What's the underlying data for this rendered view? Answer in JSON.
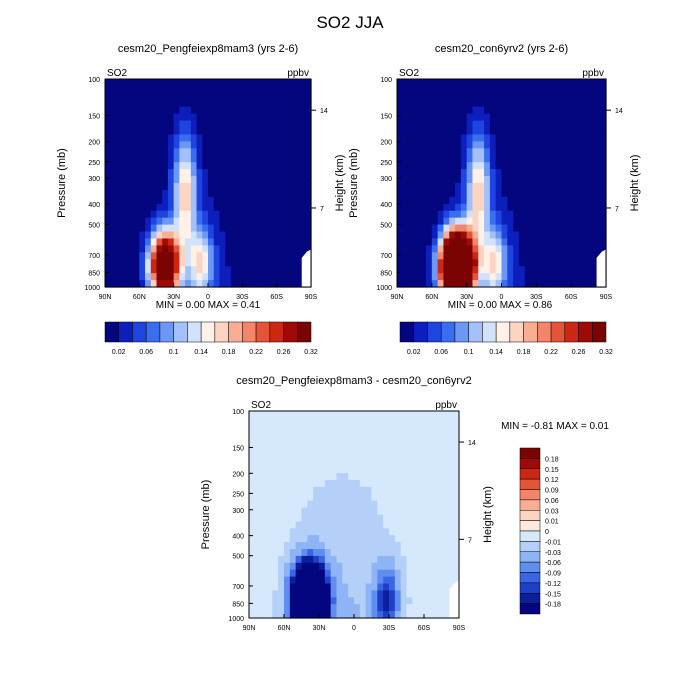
{
  "page_title": "SO2 JJA",
  "chart_data": [
    {
      "type": "heatmap",
      "title": "cesm20_Pengfeiexp8mam3 (yrs 2-6)",
      "left_label": "SO2",
      "right_label": "ppbv",
      "xlabel": "",
      "ylabel": "Pressure (mb)",
      "ylabel_right": "Height (km)",
      "x_ticks": [
        "90N",
        "60N",
        "30N",
        "0",
        "30S",
        "60S",
        "90S"
      ],
      "y_ticks": [
        "100",
        "150",
        "200",
        "250",
        "300",
        "400",
        "500",
        "700",
        "850",
        "1000"
      ],
      "height_ticks": [
        "14",
        "7"
      ],
      "min_max_text": {
        "min_label": "MIN =",
        "min": "0.00",
        "max_label": "MAX =",
        "max": "0.41"
      },
      "colorbar_labels": [
        "0.02",
        "0.06",
        "0.1",
        "0.14",
        "0.18",
        "0.22",
        "0.26",
        "0.32"
      ],
      "colorbar_colors": [
        "#04067f",
        "#0c1fbd",
        "#1f45e0",
        "#3a6ef0",
        "#6b98f5",
        "#a3c0fa",
        "#d2e2fb",
        "#fff0e8",
        "#fcd4c2",
        "#f9ae94",
        "#f2856a",
        "#e45439",
        "#cb2712",
        "#a00a06",
        "#7a0404"
      ],
      "background_value": 0.005,
      "hotspots": [
        {
          "lat": 20,
          "p": 350,
          "value": 0.12,
          "peak": 0.16
        },
        {
          "lat": 38,
          "p": 780,
          "value": 0.3,
          "peak": 0.41
        },
        {
          "lat": 6,
          "p": 760,
          "value": 0.1,
          "peak": 0.14
        }
      ]
    },
    {
      "type": "heatmap",
      "title": "cesm20_con6yrv2 (yrs 2-6)",
      "left_label": "SO2",
      "right_label": "ppbv",
      "xlabel": "",
      "ylabel": "Pressure (mb)",
      "ylabel_right": "Height (km)",
      "x_ticks": [
        "90N",
        "60N",
        "30N",
        "0",
        "30S",
        "60S",
        "90S"
      ],
      "y_ticks": [
        "100",
        "150",
        "200",
        "250",
        "300",
        "400",
        "500",
        "700",
        "850",
        "1000"
      ],
      "height_ticks": [
        "14",
        "7"
      ],
      "min_max_text": {
        "min_label": "MIN =",
        "min": "0.00",
        "max_label": "MAX =",
        "max": "0.86"
      },
      "colorbar_labels": [
        "0.02",
        "0.06",
        "0.1",
        "0.14",
        "0.18",
        "0.22",
        "0.26",
        "0.32"
      ],
      "colorbar_colors": [
        "#04067f",
        "#0c1fbd",
        "#1f45e0",
        "#3a6ef0",
        "#6b98f5",
        "#a3c0fa",
        "#d2e2fb",
        "#fff0e8",
        "#fcd4c2",
        "#f9ae94",
        "#f2856a",
        "#e45439",
        "#cb2712",
        "#a00a06",
        "#7a0404"
      ],
      "background_value": 0.005,
      "hotspots": [
        {
          "lat": 20,
          "p": 350,
          "value": 0.12,
          "peak": 0.16
        },
        {
          "lat": 38,
          "p": 800,
          "value": 0.5,
          "peak": 0.86
        },
        {
          "lat": 6,
          "p": 760,
          "value": 0.1,
          "peak": 0.14
        }
      ]
    },
    {
      "type": "heatmap",
      "title": "cesm20_Pengfeiexp8mam3 - cesm20_con6yrv2",
      "left_label": "SO2",
      "right_label": "ppbv",
      "xlabel": "",
      "ylabel": "Pressure (mb)",
      "ylabel_right": "Height (km)",
      "x_ticks": [
        "90N",
        "60N",
        "30N",
        "0",
        "30S",
        "60S",
        "90S"
      ],
      "y_ticks": [
        "100",
        "150",
        "200",
        "250",
        "300",
        "400",
        "500",
        "700",
        "850",
        "1000"
      ],
      "height_ticks": [
        "14",
        "7"
      ],
      "min_max_text": {
        "min_label": "MIN =",
        "min": "-0.81",
        "max_label": "MAX =",
        "max": "0.01"
      },
      "colorbar_labels": [
        "0.18",
        "0.15",
        "0.12",
        "0.09",
        "0.06",
        "0.03",
        "0.01",
        "0",
        "-0.01",
        "-0.03",
        "-0.06",
        "-0.09",
        "-0.12",
        "-0.15",
        "-0.18"
      ],
      "colorbar_colors": [
        "#7a0404",
        "#a00a06",
        "#cb2712",
        "#e45439",
        "#f2856a",
        "#f9ae94",
        "#fcd4c2",
        "#fbe9dd",
        "#d6e8fb",
        "#b4d0f8",
        "#8fb4f5",
        "#5e8ff0",
        "#3a66e3",
        "#1e3fc7",
        "#0b1f9c",
        "#04067f"
      ],
      "background_value": -0.005,
      "hotspots": [
        {
          "lat": 38,
          "p": 820,
          "value": -0.5,
          "peak": -0.81
        },
        {
          "lat": -28,
          "p": 820,
          "value": -0.1,
          "peak": -0.15
        }
      ]
    }
  ]
}
